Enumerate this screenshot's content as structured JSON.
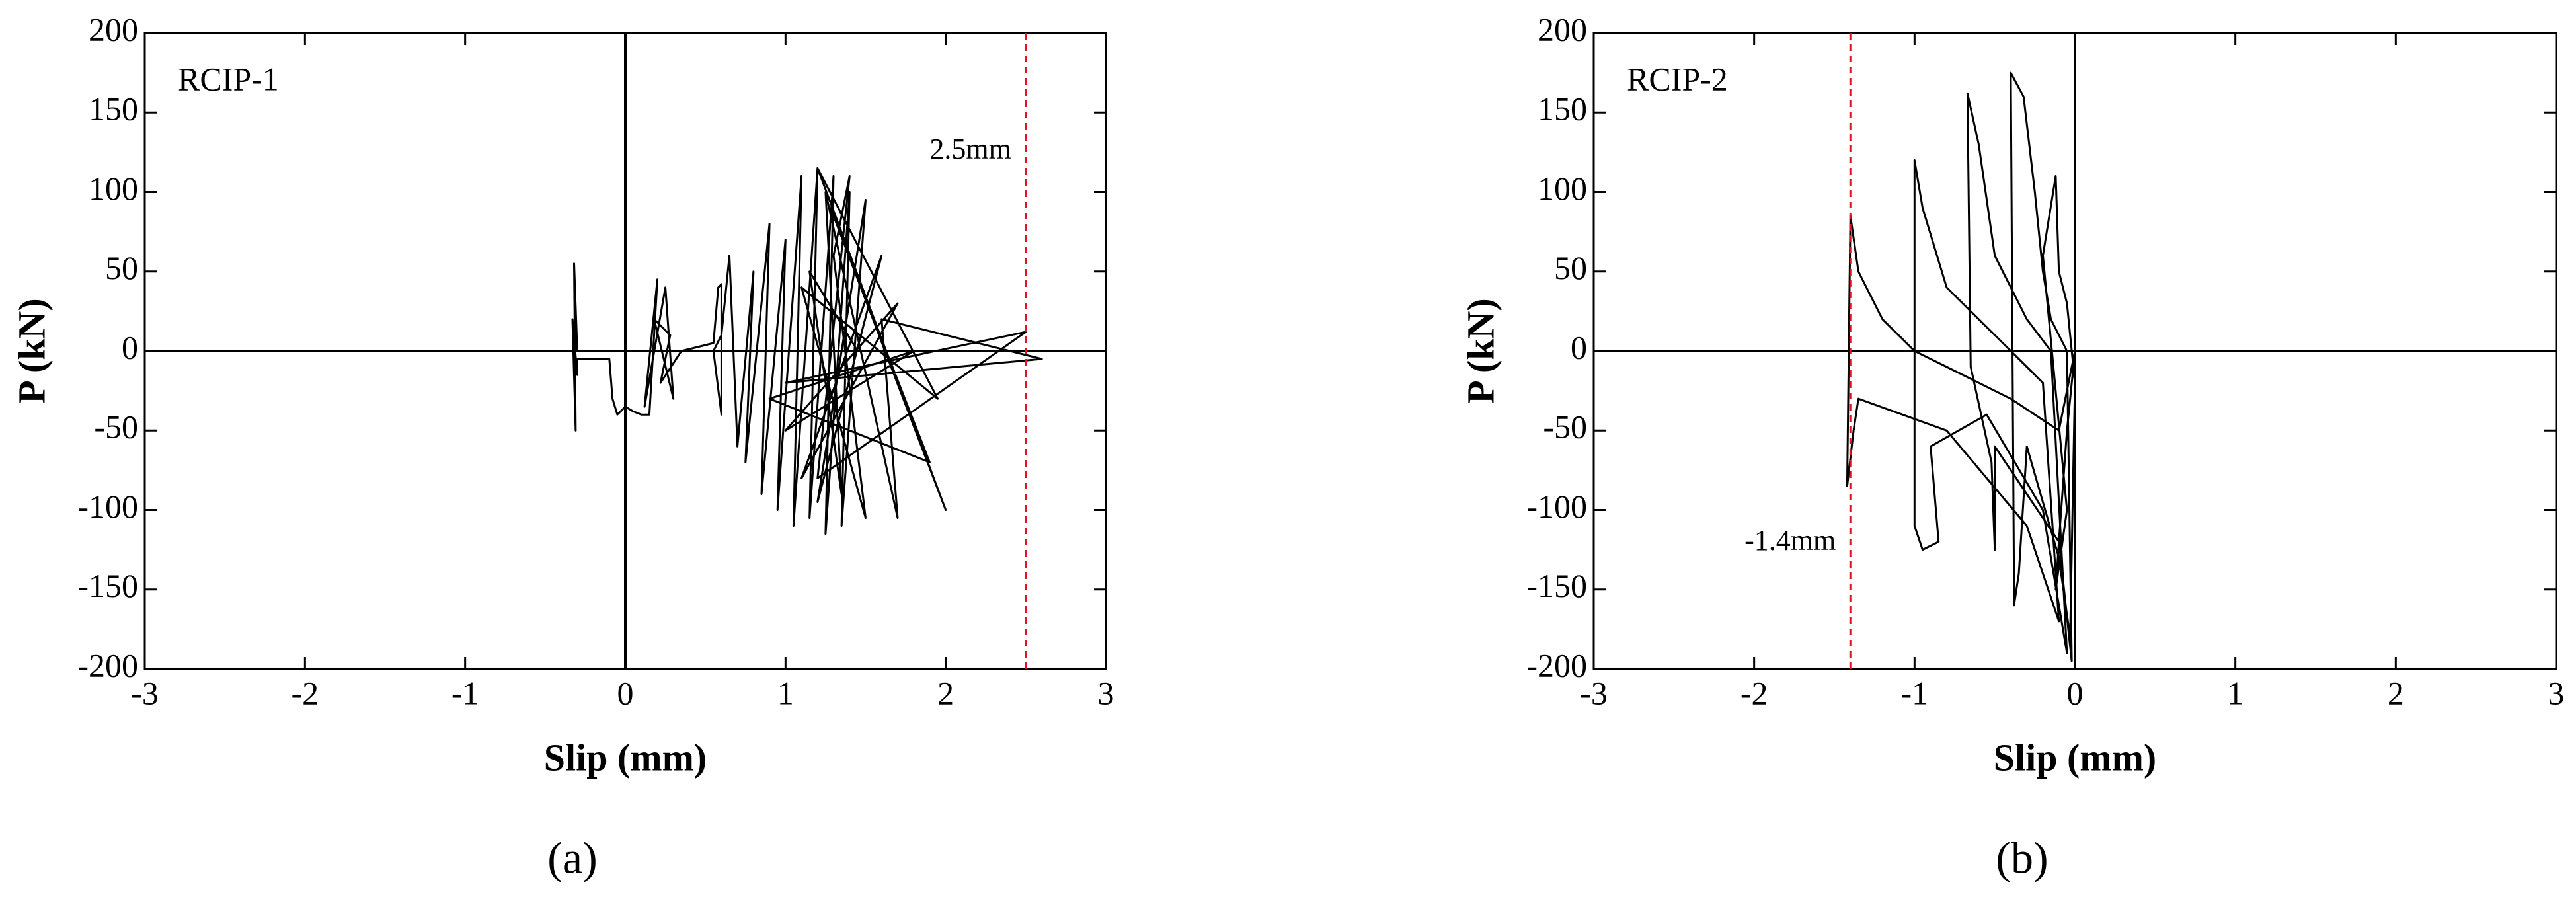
{
  "chart_data": [
    {
      "type": "line",
      "caption": "(a)",
      "label": "RCIP-1",
      "xlabel": "Slip (mm)",
      "ylabel": "P (kN)",
      "xlim": [
        -3,
        3
      ],
      "xticks": [
        -3,
        -2,
        -1,
        0,
        1,
        2,
        3
      ],
      "ylim": [
        -200,
        200
      ],
      "yticks": [
        -200,
        -150,
        -100,
        -50,
        0,
        50,
        100,
        150,
        200
      ],
      "annotations": [
        {
          "text": "2.5mm",
          "x": 2.5,
          "color": "#e0141e"
        }
      ],
      "series": [
        {
          "color": "#000000",
          "x": [
            0,
            -0.3,
            -0.32,
            -0.31,
            -0.33,
            -0.3,
            -0.3,
            -0.1,
            -0.08,
            -0.05,
            0.0,
            0.05,
            0.1,
            0.15,
            0.2,
            0.12,
            0.25,
            0.3,
            0.18,
            0.28,
            0.22,
            0.35,
            0.55,
            0.58,
            0.6,
            0.6,
            0.55,
            0.6,
            0.65,
            0.7,
            0.8,
            0.75,
            0.9,
            0.85,
            1.0,
            0.95,
            1.1,
            1.05,
            1.2,
            1.15,
            1.3,
            1.25,
            1.4,
            1.35,
            1.5,
            1.2,
            1.6,
            1.1,
            1.7,
            1.0,
            1.8,
            0.9,
            1.9,
            1.3,
            2.0,
            1.2,
            1.95,
            1.1,
            1.5,
            1.3,
            1.4,
            1.2,
            2.5,
            1.0,
            2.6,
            1.6,
            1.7,
            1.25,
            1.35,
            1.15,
            1.45
          ],
          "values": [
            0,
            0,
            55,
            -50,
            20,
            -15,
            -5,
            -5,
            -30,
            -40,
            -35,
            -38,
            -40,
            -40,
            45,
            -35,
            40,
            -30,
            20,
            10,
            -20,
            0,
            5,
            40,
            42,
            -40,
            0,
            10,
            60,
            -60,
            50,
            -70,
            80,
            -90,
            70,
            -100,
            110,
            -110,
            115,
            -105,
            110,
            -115,
            100,
            -110,
            95,
            -95,
            60,
            -80,
            30,
            -50,
            0,
            -30,
            -70,
            85,
            -100,
            115,
            -30,
            40,
            -105,
            60,
            110,
            -80,
            12,
            -20,
            -5,
            20,
            -105,
            100,
            -90,
            50,
            0
          ]
        }
      ]
    },
    {
      "type": "line",
      "caption": "(b)",
      "label": "RCIP-2",
      "xlabel": "Slip (mm)",
      "ylabel": "P (kN)",
      "xlim": [
        -3,
        3
      ],
      "xticks": [
        -3,
        -2,
        -1,
        0,
        1,
        2,
        3
      ],
      "ylim": [
        -200,
        200
      ],
      "yticks": [
        -200,
        -150,
        -100,
        -50,
        0,
        50,
        100,
        150,
        200
      ],
      "annotations": [
        {
          "text": "-1.4mm",
          "x": -1.4,
          "color": "#e0141e"
        }
      ],
      "series": [
        {
          "color": "#000000",
          "x": [
            0.15,
            0,
            -0.05,
            -0.1,
            -0.12,
            -0.05,
            -0.2,
            -0.12,
            -0.1,
            -0.05,
            0,
            -0.03,
            -0.1,
            -0.3,
            -0.35,
            -0.38,
            -0.38,
            -0.4,
            -0.32,
            -0.25,
            -0.2,
            -0.15,
            -0.05,
            -0.02,
            -0.1,
            -0.5,
            -0.5,
            -0.52,
            -0.65,
            -0.67,
            -0.6,
            -0.5,
            -0.3,
            -0.15,
            -0.05,
            -0.2,
            -0.55,
            -0.9,
            -0.85,
            -0.95,
            -1.0,
            -1.0,
            -0.95,
            -0.8,
            -0.5,
            -0.2,
            -0.1,
            -0.3,
            -0.8,
            -1.35,
            -1.38,
            -1.42,
            -1.4,
            -1.35,
            -1.2,
            -1.0,
            -0.8,
            -0.4,
            -0.1,
            0,
            0.15
          ],
          "values": [
            0,
            0,
            -50,
            -120,
            -150,
            -100,
            60,
            110,
            50,
            30,
            -20,
            -180,
            -130,
            -60,
            -140,
            -160,
            -150,
            175,
            160,
            100,
            50,
            20,
            0,
            -195,
            -120,
            -60,
            -125,
            -70,
            -10,
            162,
            130,
            60,
            20,
            0,
            -190,
            -100,
            -40,
            -60,
            -120,
            -125,
            -110,
            120,
            90,
            40,
            10,
            -20,
            -170,
            -110,
            -50,
            -30,
            -50,
            -85,
            85,
            50,
            20,
            0,
            -10,
            -30,
            -50,
            0,
            0
          ]
        }
      ]
    }
  ]
}
